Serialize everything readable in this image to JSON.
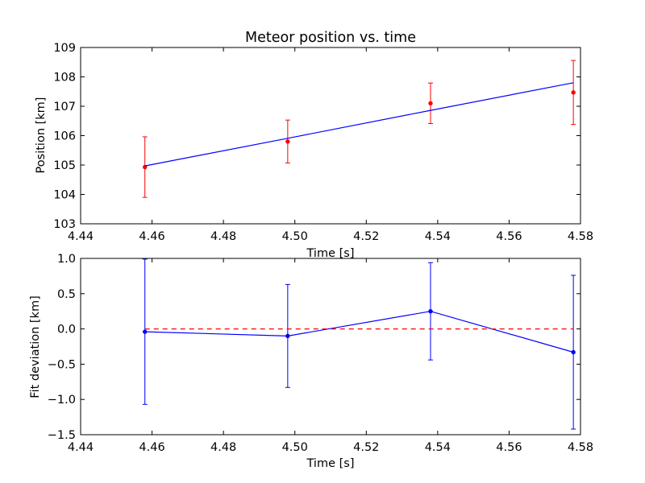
{
  "chart_data": [
    {
      "type": "line",
      "title": "Meteor position vs. time",
      "xlabel": "Time [s]",
      "ylabel": "Position [km]",
      "xlim": [
        4.44,
        4.58
      ],
      "ylim": [
        103,
        109
      ],
      "xticks": [
        "4.44",
        "4.46",
        "4.48",
        "4.50",
        "4.52",
        "4.54",
        "4.56",
        "4.58"
      ],
      "yticks": [
        "103",
        "104",
        "105",
        "106",
        "107",
        "108",
        "109"
      ],
      "grid": false,
      "series": [
        {
          "kind": "errorbar-points",
          "color": "#ff0000",
          "x": [
            4.458,
            4.498,
            4.538,
            4.578
          ],
          "y": [
            104.93,
            105.8,
            107.1,
            107.47
          ],
          "yerr": [
            1.03,
            0.73,
            0.69,
            1.09
          ]
        },
        {
          "kind": "fit-line",
          "color": "#0000ff",
          "x": [
            4.458,
            4.498,
            4.538,
            4.578
          ],
          "y": [
            104.97,
            105.91,
            106.86,
            107.8
          ]
        }
      ]
    },
    {
      "type": "line",
      "title": "",
      "xlabel": "Time [s]",
      "ylabel": "Fit deviation [km]",
      "xlim": [
        4.44,
        4.58
      ],
      "ylim": [
        -1.5,
        1.0
      ],
      "xticks": [
        "4.44",
        "4.46",
        "4.48",
        "4.50",
        "4.52",
        "4.54",
        "4.56",
        "4.58"
      ],
      "yticks": [
        "−1.5",
        "−1.0",
        "−0.5",
        "0.0",
        "0.5",
        "1.0"
      ],
      "grid": false,
      "series": [
        {
          "kind": "errorbar-line",
          "color": "#0000ff",
          "x": [
            4.458,
            4.498,
            4.538,
            4.578
          ],
          "y": [
            -0.04,
            -0.1,
            0.25,
            -0.33
          ],
          "yerr": [
            1.03,
            0.73,
            0.69,
            1.09
          ]
        },
        {
          "kind": "zero-line",
          "color": "#ff0000",
          "x": [
            4.458,
            4.578
          ],
          "y": [
            0.0,
            0.0
          ]
        }
      ]
    }
  ]
}
